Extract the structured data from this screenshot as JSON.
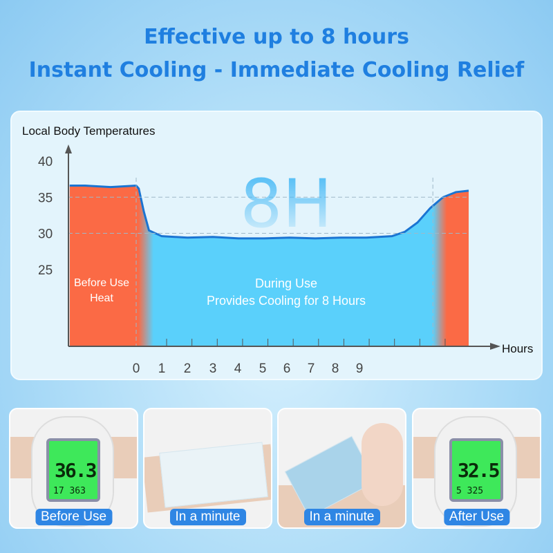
{
  "header": {
    "line1": "Effective up to 8 hours",
    "line2": "Instant Cooling - Immediate Cooling Relief"
  },
  "chart_data": {
    "type": "area",
    "ylabel": "Local Body Temperatures",
    "xlabel": "Hours",
    "yticks": [
      "40",
      "35",
      "30",
      "25"
    ],
    "xticks": [
      "0",
      "1",
      "2",
      "3",
      "4",
      "5",
      "6",
      "7",
      "8",
      "9"
    ],
    "big_label": "8H",
    "region_labels": {
      "before": [
        "Before Use",
        "Heat"
      ],
      "during": [
        "During Use",
        "Provides Cooling for 8 Hours"
      ]
    },
    "series": {
      "x": [
        -2.6,
        -2,
        -1,
        0,
        0.1,
        0.3,
        0.5,
        1,
        2,
        3,
        4,
        5,
        6,
        7,
        8,
        9,
        10,
        10.5,
        11,
        11.5,
        12,
        12.5,
        13
      ],
      "y": [
        36.6,
        36.6,
        36.4,
        36.6,
        36.2,
        33,
        30.4,
        29.6,
        29.4,
        29.5,
        29.3,
        29.3,
        29.4,
        29.3,
        29.4,
        29.4,
        29.6,
        30.2,
        31.5,
        33.5,
        35.0,
        35.7,
        35.9
      ]
    },
    "colors": {
      "heat": "#fb6a45",
      "cool": "#5ad0fb",
      "line": "#1a74d2"
    },
    "grid_dashed": [
      30,
      35
    ]
  },
  "photos": [
    {
      "caption": "Before Use",
      "reading": "36.3",
      "sub": "17  363"
    },
    {
      "caption": "In a minute"
    },
    {
      "caption": "In a minute"
    },
    {
      "caption": "After Use",
      "reading": "32.5",
      "sub": "5  325"
    }
  ]
}
